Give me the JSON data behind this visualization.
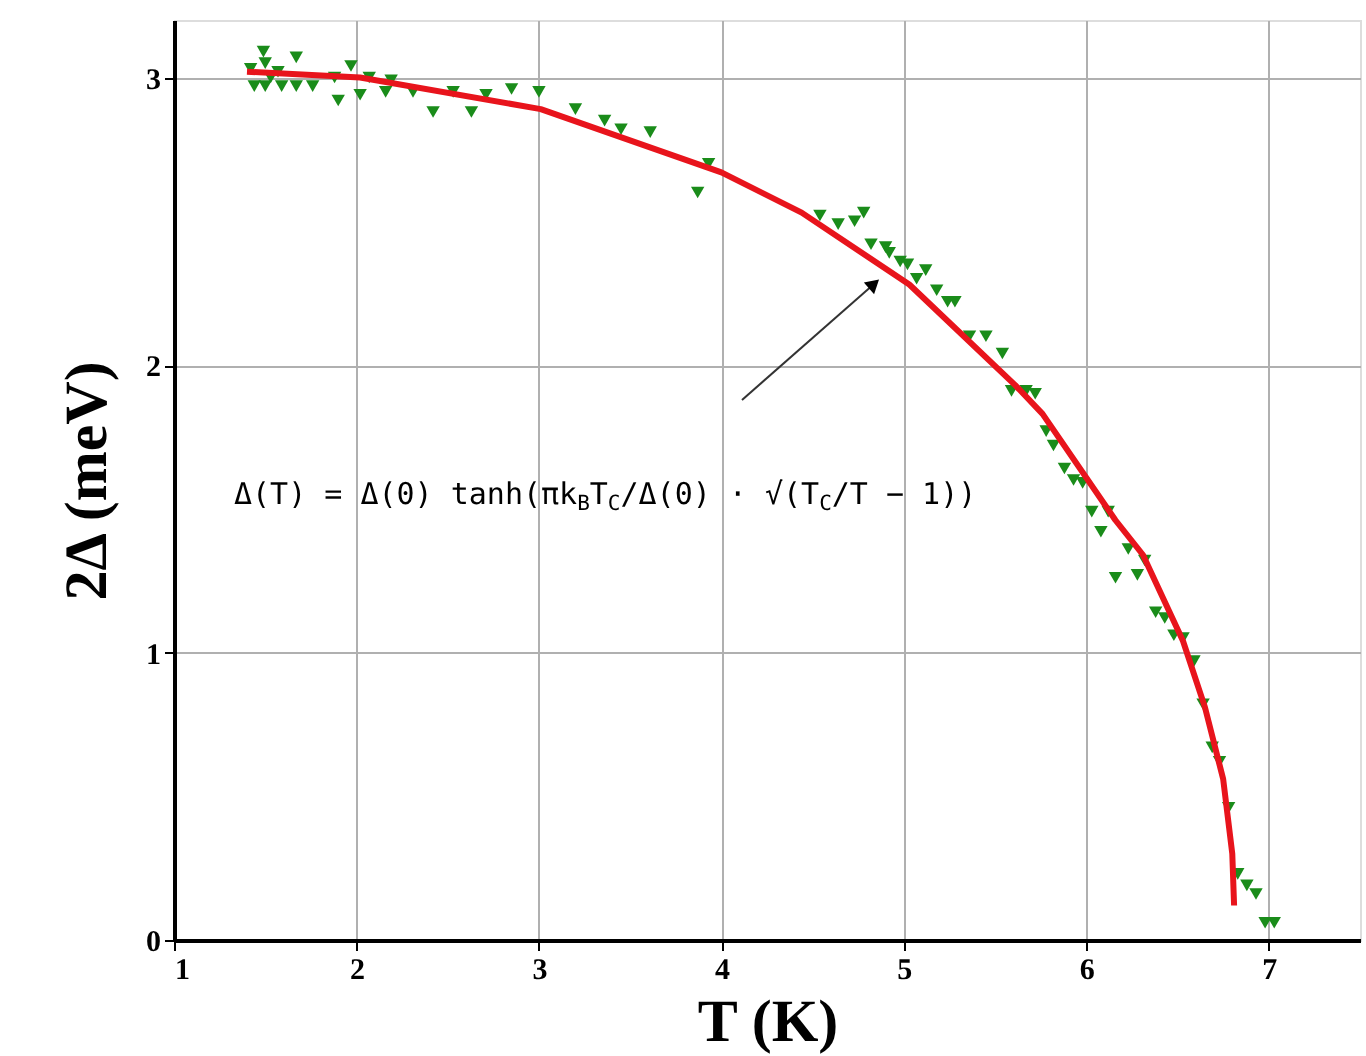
{
  "chart_data": {
    "type": "scatter",
    "xlabel": "T (K)",
    "ylabel": "2Δ (meV)",
    "xlim": [
      1,
      7.5
    ],
    "ylim": [
      0,
      3.2
    ],
    "xticks": [
      1,
      2,
      3,
      4,
      5,
      6,
      7
    ],
    "yticks": [
      0,
      1,
      2,
      3
    ],
    "grid": true,
    "series": [
      {
        "color": "#1a8c1a",
        "marker": "triangle",
        "x": [
          1.42,
          1.49,
          1.5,
          1.44,
          1.5,
          1.53,
          1.57,
          1.59,
          1.67,
          1.67,
          1.76,
          1.88,
          1.9,
          1.97,
          2.02,
          2.07,
          2.16,
          2.19,
          2.31,
          2.42,
          2.53,
          2.63,
          2.71,
          2.85,
          3.0,
          3.2,
          3.36,
          3.45,
          3.61,
          3.87,
          3.93,
          4.54,
          4.64,
          4.73,
          4.78,
          4.82,
          4.9,
          4.92,
          4.98,
          5.02,
          5.07,
          5.12,
          5.18,
          5.24,
          5.28,
          5.36,
          5.45,
          5.54,
          5.59,
          5.67,
          5.72,
          5.78,
          5.82,
          5.88,
          5.93,
          5.98,
          6.03,
          6.12,
          6.08,
          6.23,
          6.32,
          6.16,
          6.28,
          6.38,
          6.43,
          6.48,
          6.53,
          6.59,
          6.64,
          6.69,
          6.73,
          6.78,
          6.83,
          6.88,
          6.93,
          6.98,
          7.03
        ],
        "values": [
          3.03,
          3.09,
          3.05,
          2.97,
          2.97,
          3.0,
          3.02,
          2.97,
          3.07,
          2.97,
          2.97,
          3.0,
          2.92,
          3.04,
          2.94,
          3.0,
          2.95,
          2.99,
          2.95,
          2.88,
          2.95,
          2.88,
          2.94,
          2.96,
          2.95,
          2.89,
          2.85,
          2.82,
          2.81,
          2.6,
          2.7,
          2.52,
          2.49,
          2.5,
          2.53,
          2.42,
          2.41,
          2.39,
          2.36,
          2.35,
          2.3,
          2.33,
          2.26,
          2.22,
          2.22,
          2.1,
          2.1,
          2.04,
          1.91,
          1.91,
          1.9,
          1.77,
          1.72,
          1.64,
          1.6,
          1.59,
          1.49,
          1.49,
          1.42,
          1.36,
          1.32,
          1.26,
          1.27,
          1.14,
          1.12,
          1.06,
          1.05,
          0.97,
          0.82,
          0.67,
          0.62,
          0.46,
          0.23,
          0.19,
          0.16,
          0.06,
          0.06
        ]
      },
      {
        "type": "line",
        "color": "#e8141c",
        "line_style": "solid",
        "x": [
          1.4,
          2.02,
          3.01,
          4.0,
          4.44,
          5.03,
          5.61,
          5.76,
          6.16,
          6.31,
          6.53,
          6.65,
          6.75,
          6.8,
          6.81
        ],
        "values": [
          3.02,
          3.0,
          2.89,
          2.67,
          2.53,
          2.28,
          1.93,
          1.83,
          1.46,
          1.34,
          1.04,
          0.81,
          0.56,
          0.3,
          0.12
        ]
      }
    ],
    "annotations": [
      "Δ(T) = Δ(0) tanh(πk$_{B}$T$_{C}$/Δ(0) · √(T$_{C}$/T − 1))"
    ]
  }
}
